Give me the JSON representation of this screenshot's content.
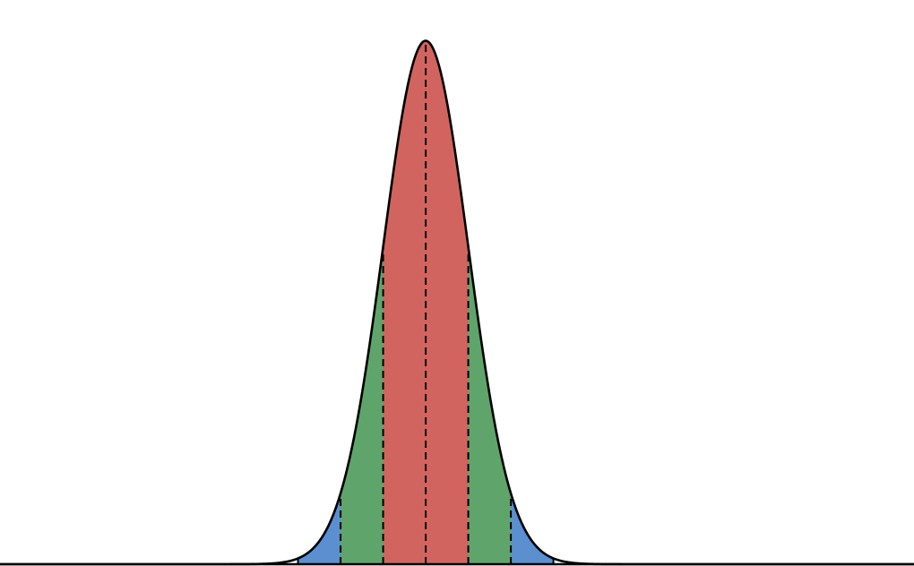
{
  "chart_data": {
    "type": "normal",
    "mean": 0,
    "std": 1,
    "xlim": [
      -10,
      11.47
    ],
    "ylim": [
      0,
      0.4
    ],
    "bands": [
      {
        "sigmas": 3,
        "color": "#5b8fcf"
      },
      {
        "sigmas": 2,
        "color": "#5fa56b"
      },
      {
        "sigmas": 1,
        "color": "#d2645f"
      }
    ],
    "line_color": "#000000"
  }
}
